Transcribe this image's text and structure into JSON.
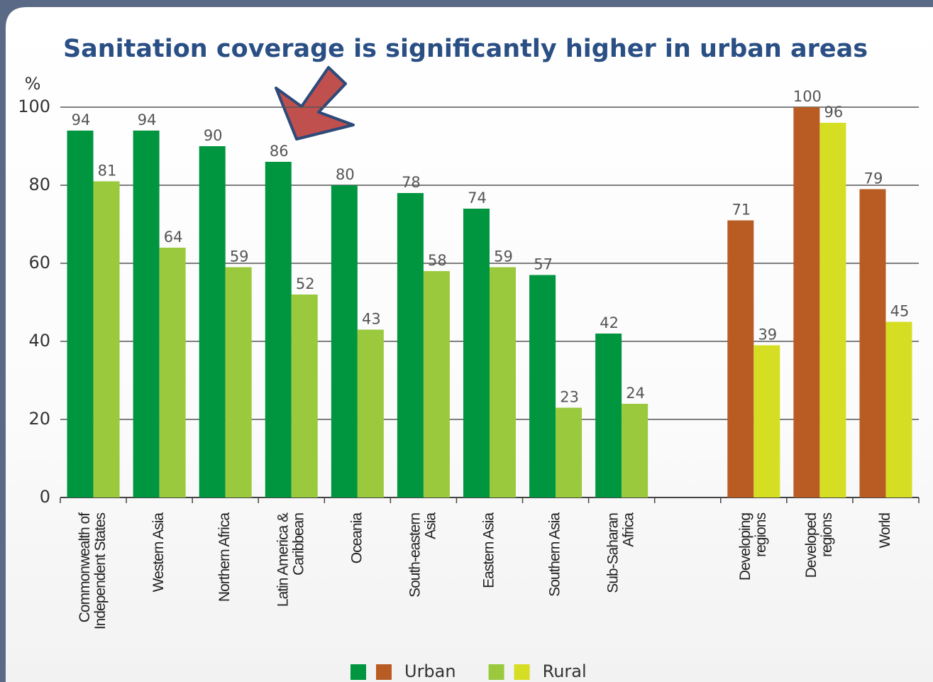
{
  "chart_data": {
    "type": "bar",
    "title": "Sanitation coverage is significantly higher in urban areas",
    "y_label": "%",
    "categories": [
      [
        "Commonwealth of",
        "Independent States"
      ],
      [
        "Western Asia"
      ],
      [
        "Northern Africa"
      ],
      [
        "Latin America &",
        "Caribbean"
      ],
      [
        "Oceania"
      ],
      [
        "South-eastern",
        "Asia"
      ],
      [
        "Eastern Asia"
      ],
      [
        "Southern Asia"
      ],
      [
        "Sub-Saharan",
        "Africa"
      ],
      null,
      [
        "Developing",
        "regions"
      ],
      [
        "Developed",
        "regions"
      ],
      [
        "World"
      ]
    ],
    "series": [
      {
        "name": "Urban",
        "values": [
          94,
          94,
          90,
          86,
          80,
          78,
          74,
          57,
          42,
          null,
          71,
          100,
          79
        ],
        "colors": [
          "#00953f",
          "#00953f",
          "#00953f",
          "#00953f",
          "#00953f",
          "#00953f",
          "#00953f",
          "#00953f",
          "#00953f",
          null,
          "#b85c24",
          "#b85c24",
          "#b85c24"
        ]
      },
      {
        "name": "Rural",
        "values": [
          81,
          64,
          59,
          52,
          43,
          58,
          59,
          23,
          24,
          null,
          39,
          96,
          45
        ],
        "colors": [
          "#9ac93d",
          "#9ac93d",
          "#9ac93d",
          "#9ac93d",
          "#9ac93d",
          "#9ac93d",
          "#9ac93d",
          "#9ac93d",
          "#9ac93d",
          null,
          "#d6de24",
          "#d6de24",
          "#d6de24"
        ]
      }
    ],
    "ylim": [
      0,
      100
    ],
    "yticks": [
      0,
      20,
      40,
      60,
      80,
      100
    ],
    "grid": true,
    "legend": "bottom"
  }
}
